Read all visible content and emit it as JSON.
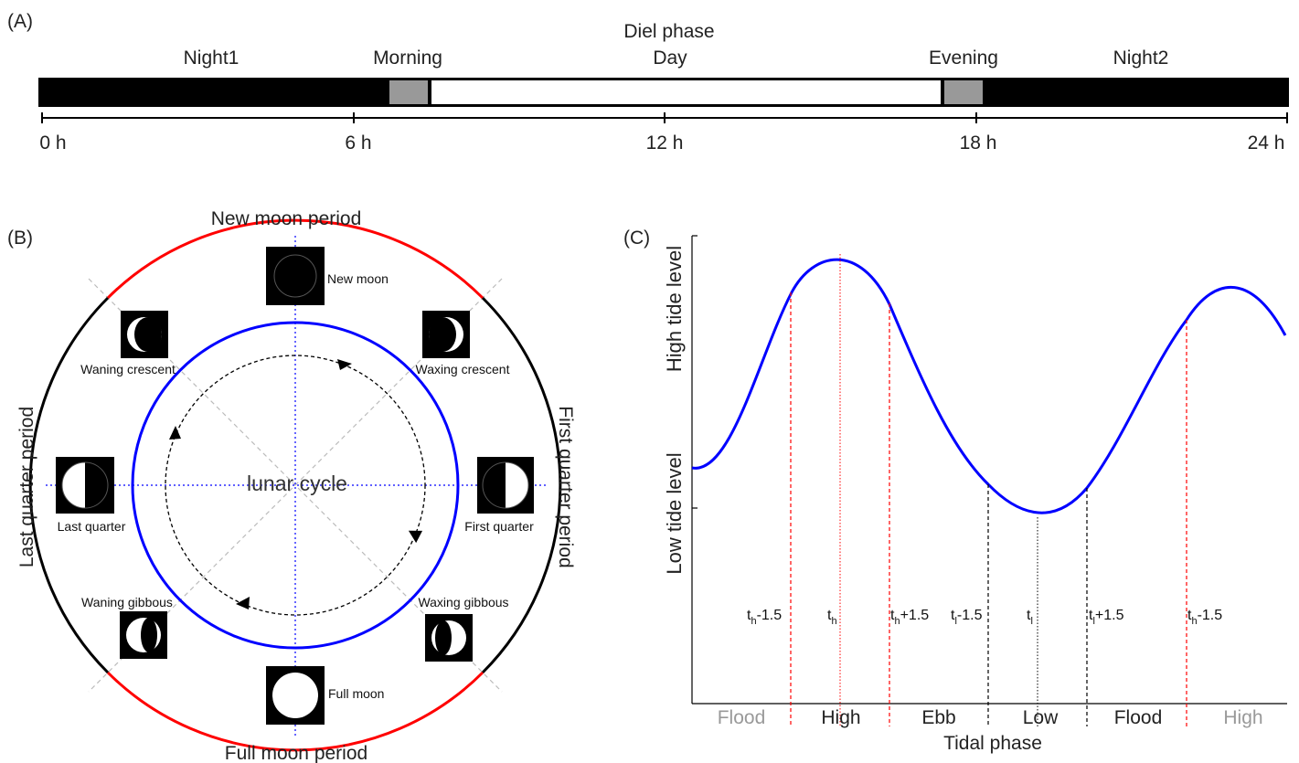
{
  "panel_a": {
    "label": "(A)",
    "title": "Diel phase",
    "phases": [
      "Night1",
      "Morning",
      "Day",
      "Evening",
      "Night2"
    ],
    "ticks": [
      "0 h",
      "6 h",
      "12 h",
      "18 h",
      "24 h"
    ]
  },
  "panel_b": {
    "label": "(B)",
    "center": "lunar cycle",
    "periods": {
      "top": "New moon period",
      "bottom": "Full moon period",
      "left": "Last quarter period",
      "right": "First quarter period"
    },
    "phases": {
      "new": "New moon",
      "waxing_crescent": "Waxing crescent",
      "first_quarter": "First quarter",
      "waxing_gibbous": "Waxing gibbous",
      "full": "Full moon",
      "waning_gibbous": "Waning gibbous",
      "last_quarter": "Last quarter",
      "waning_crescent": "Waning crescent"
    },
    "colors": {
      "new_full_arc": "#ff0000",
      "quarter_arc": "#000000",
      "inner_ring": "#0000ff"
    }
  },
  "panel_c": {
    "label": "(C)",
    "ylabel_high": "High tide level",
    "ylabel_low": "Low tide level",
    "xlabel": "Tidal phase",
    "markers": [
      {
        "base": "t",
        "sub": "h",
        "sup": "-1.5"
      },
      {
        "base": "t",
        "sub": "h",
        "sup": ""
      },
      {
        "base": "t",
        "sub": "h",
        "sup": "+1.5"
      },
      {
        "base": "t",
        "sub": "l",
        "sup": "-1.5"
      },
      {
        "base": "t",
        "sub": "l",
        "sup": ""
      },
      {
        "base": "t",
        "sub": "l",
        "sup": "+1.5"
      },
      {
        "base": "t",
        "sub": "h",
        "sup": "-1.5"
      }
    ],
    "phases": [
      "Flood",
      "High",
      "Ebb",
      "Low",
      "Flood",
      "High"
    ],
    "curve_color": "#0000ff"
  }
}
